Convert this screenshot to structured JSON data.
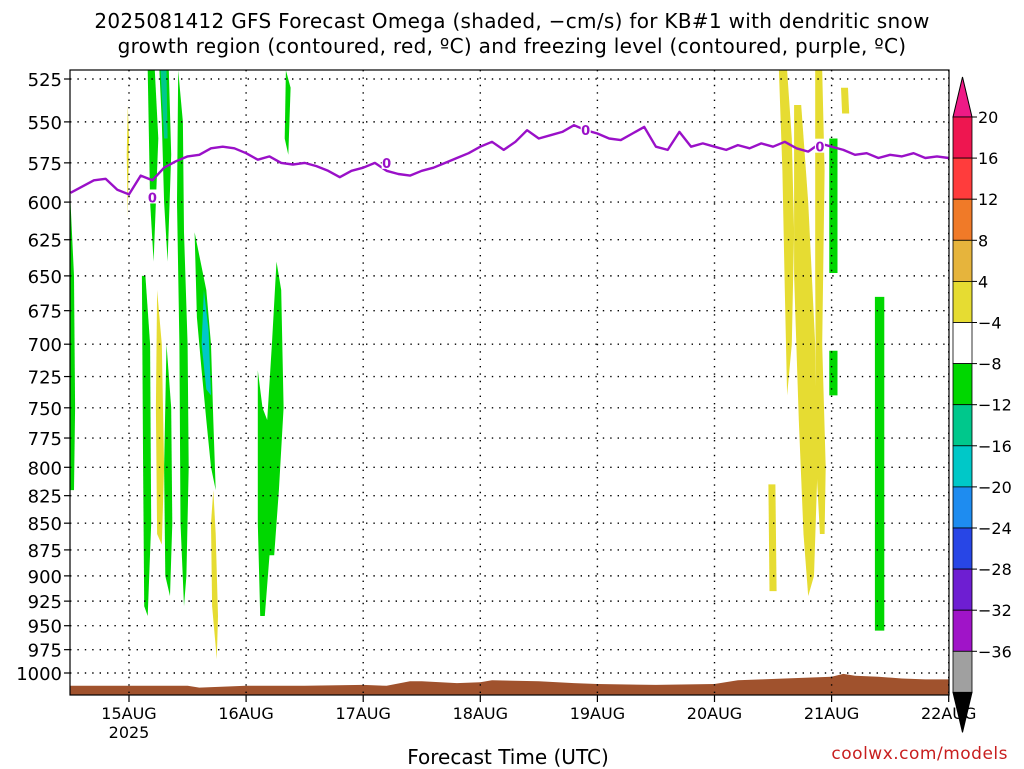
{
  "header": {
    "title_line1": "2025081412 GFS Forecast Omega (shaded, −cm/s) for KB#1 with dendritic snow",
    "title_line2": "growth region (contoured, red, ºC) and freezing level (contoured, purple, ºC)"
  },
  "footer": {
    "credit": "coolwx.com/models"
  },
  "chart_data": {
    "type": "heatmap",
    "xlabel": "Forecast Time (UTC)",
    "ylabel": "",
    "x_ticks": [
      {
        "label": "15AUG",
        "sub": "2025",
        "day": 15
      },
      {
        "label": "16AUG",
        "sub": "",
        "day": 16
      },
      {
        "label": "17AUG",
        "sub": "",
        "day": 17
      },
      {
        "label": "18AUG",
        "sub": "",
        "day": 18
      },
      {
        "label": "19AUG",
        "sub": "",
        "day": 19
      },
      {
        "label": "20AUG",
        "sub": "",
        "day": 20
      },
      {
        "label": "21AUG",
        "sub": "",
        "day": 21
      },
      {
        "label": "22AUG",
        "sub": "",
        "day": 22
      }
    ],
    "xlim": [
      14.5,
      22.0
    ],
    "y_ticks": [
      525,
      550,
      575,
      600,
      625,
      650,
      675,
      700,
      725,
      750,
      775,
      800,
      825,
      850,
      875,
      900,
      925,
      950,
      975,
      1000
    ],
    "ylim": [
      520,
      1020
    ],
    "y_scale": "log-pressure, inverted",
    "grid": true,
    "colorbar": {
      "labels": [
        "20",
        "16",
        "12",
        "8",
        "4",
        "−4",
        "−8",
        "−12",
        "−16",
        "−20",
        "−24",
        "−28",
        "−32",
        "−36"
      ],
      "colors": [
        "#ee1650",
        "#ff3c3c",
        "#f07a28",
        "#e6b43c",
        "#e6dc32",
        "#ffffff",
        "#00d700",
        "#00c88c",
        "#00c8c8",
        "#1e8cf0",
        "#2846e6",
        "#6e1ed2",
        "#a014c8",
        "#a0a0a0",
        "#000000"
      ],
      "top_color": "#ee1a86",
      "bottom_color": "#000000"
    },
    "shaded_regions": [
      {
        "color": "#00d700",
        "points": [
          [
            14.5,
            600
          ],
          [
            14.53,
            650
          ],
          [
            14.54,
            750
          ],
          [
            14.53,
            820
          ],
          [
            14.5,
            820
          ]
        ]
      },
      {
        "color": "#e6dc32",
        "points": [
          [
            14.99,
            540
          ],
          [
            15.0,
            560
          ],
          [
            14.99,
            610
          ],
          [
            14.98,
            570
          ]
        ]
      },
      {
        "color": "#00d700",
        "points": [
          [
            15.14,
            650
          ],
          [
            15.18,
            700
          ],
          [
            15.19,
            850
          ],
          [
            15.16,
            940
          ],
          [
            15.13,
            930
          ],
          [
            15.12,
            800
          ],
          [
            15.11,
            650
          ]
        ]
      },
      {
        "color": "#00d700",
        "points": [
          [
            15.16,
            520
          ],
          [
            15.22,
            520
          ],
          [
            15.25,
            560
          ],
          [
            15.23,
            600
          ],
          [
            15.21,
            640
          ],
          [
            15.18,
            600
          ]
        ]
      },
      {
        "color": "#00d700",
        "points": [
          [
            15.26,
            520
          ],
          [
            15.34,
            520
          ],
          [
            15.36,
            570
          ],
          [
            15.33,
            640
          ],
          [
            15.3,
            600
          ],
          [
            15.28,
            550
          ]
        ]
      },
      {
        "color": "#00c88c",
        "points": [
          [
            15.27,
            520
          ],
          [
            15.32,
            520
          ],
          [
            15.33,
            560
          ],
          [
            15.3,
            560
          ]
        ]
      },
      {
        "color": "#e6dc32",
        "points": [
          [
            15.24,
            660
          ],
          [
            15.28,
            700
          ],
          [
            15.3,
            800
          ],
          [
            15.28,
            870
          ],
          [
            15.24,
            860
          ],
          [
            15.23,
            750
          ]
        ]
      },
      {
        "color": "#00d700",
        "points": [
          [
            15.32,
            700
          ],
          [
            15.36,
            750
          ],
          [
            15.37,
            850
          ],
          [
            15.35,
            920
          ],
          [
            15.31,
            900
          ],
          [
            15.3,
            800
          ]
        ]
      },
      {
        "color": "#00d700",
        "points": [
          [
            15.42,
            520
          ],
          [
            15.46,
            550
          ],
          [
            15.47,
            620
          ],
          [
            15.5,
            700
          ],
          [
            15.51,
            800
          ],
          [
            15.49,
            900
          ],
          [
            15.47,
            930
          ],
          [
            15.44,
            850
          ],
          [
            15.43,
            700
          ],
          [
            15.41,
            600
          ]
        ]
      },
      {
        "color": "#00d700",
        "points": [
          [
            15.56,
            620
          ],
          [
            15.66,
            660
          ],
          [
            15.7,
            700
          ],
          [
            15.72,
            760
          ],
          [
            15.74,
            820
          ],
          [
            15.7,
            800
          ],
          [
            15.66,
            760
          ],
          [
            15.62,
            720
          ],
          [
            15.58,
            680
          ]
        ]
      },
      {
        "color": "#00c8c8",
        "points": [
          [
            15.64,
            660
          ],
          [
            15.68,
            690
          ],
          [
            15.7,
            740
          ],
          [
            15.66,
            735
          ],
          [
            15.62,
            700
          ]
        ]
      },
      {
        "color": "#e6dc32",
        "points": [
          [
            15.72,
            820
          ],
          [
            15.74,
            860
          ],
          [
            15.76,
            940
          ],
          [
            15.75,
            985
          ],
          [
            15.71,
            930
          ],
          [
            15.7,
            850
          ]
        ]
      },
      {
        "color": "#00d700",
        "points": [
          [
            16.1,
            720
          ],
          [
            16.14,
            750
          ],
          [
            16.18,
            760
          ],
          [
            16.22,
            700
          ],
          [
            16.26,
            640
          ],
          [
            16.3,
            660
          ],
          [
            16.32,
            750
          ],
          [
            16.28,
            820
          ],
          [
            16.24,
            880
          ],
          [
            16.2,
            880
          ],
          [
            16.16,
            940
          ],
          [
            16.12,
            940
          ],
          [
            16.1,
            850
          ]
        ]
      },
      {
        "color": "#00d700",
        "points": [
          [
            16.34,
            520
          ],
          [
            16.38,
            530
          ],
          [
            16.36,
            570
          ],
          [
            16.33,
            560
          ]
        ]
      },
      {
        "color": "#e6dc32",
        "points": [
          [
            20.55,
            520
          ],
          [
            20.62,
            520
          ],
          [
            20.66,
            560
          ],
          [
            20.68,
            620
          ],
          [
            20.66,
            700
          ],
          [
            20.62,
            740
          ],
          [
            20.6,
            660
          ],
          [
            20.58,
            580
          ]
        ]
      },
      {
        "color": "#e6dc32",
        "points": [
          [
            20.68,
            540
          ],
          [
            20.74,
            540
          ],
          [
            20.8,
            600
          ],
          [
            20.86,
            700
          ],
          [
            20.88,
            800
          ],
          [
            20.85,
            900
          ],
          [
            20.8,
            920
          ],
          [
            20.76,
            860
          ],
          [
            20.72,
            760
          ],
          [
            20.68,
            650
          ]
        ]
      },
      {
        "color": "#e6dc32",
        "points": [
          [
            20.86,
            520
          ],
          [
            20.92,
            520
          ],
          [
            20.94,
            580
          ],
          [
            20.92,
            700
          ],
          [
            20.95,
            800
          ],
          [
            20.94,
            860
          ],
          [
            20.9,
            860
          ],
          [
            20.87,
            800
          ],
          [
            20.86,
            650
          ]
        ]
      },
      {
        "color": "#e6dc32",
        "points": [
          [
            20.46,
            815
          ],
          [
            20.52,
            815
          ],
          [
            20.53,
            915
          ],
          [
            20.47,
            915
          ]
        ]
      },
      {
        "color": "#e6dc32",
        "points": [
          [
            21.08,
            530
          ],
          [
            21.14,
            530
          ],
          [
            21.15,
            545
          ],
          [
            21.09,
            545
          ]
        ]
      },
      {
        "color": "#00d700",
        "points": [
          [
            20.98,
            560
          ],
          [
            21.05,
            560
          ],
          [
            21.05,
            648
          ],
          [
            20.98,
            648
          ]
        ]
      },
      {
        "color": "#00d700",
        "points": [
          [
            20.98,
            705
          ],
          [
            21.05,
            705
          ],
          [
            21.05,
            740
          ],
          [
            20.98,
            740
          ]
        ]
      },
      {
        "color": "#00d700",
        "points": [
          [
            21.37,
            665
          ],
          [
            21.45,
            665
          ],
          [
            21.45,
            955
          ],
          [
            21.37,
            955
          ]
        ]
      }
    ],
    "freezing_level": {
      "color": "#9a10c8",
      "label": "0",
      "x": [
        14.5,
        14.6,
        14.7,
        14.8,
        14.9,
        15.0,
        15.1,
        15.2,
        15.3,
        15.4,
        15.5,
        15.6,
        15.7,
        15.8,
        15.9,
        16.0,
        16.1,
        16.2,
        16.3,
        16.4,
        16.5,
        16.6,
        16.7,
        16.8,
        16.9,
        17.0,
        17.1,
        17.2,
        17.3,
        17.4,
        17.5,
        17.6,
        17.7,
        17.8,
        17.9,
        18.0,
        18.1,
        18.2,
        18.3,
        18.4,
        18.5,
        18.6,
        18.7,
        18.8,
        18.9,
        19.0,
        19.1,
        19.2,
        19.3,
        19.4,
        19.5,
        19.6,
        19.7,
        19.8,
        19.9,
        20.0,
        20.1,
        20.2,
        20.3,
        20.4,
        20.5,
        20.6,
        20.7,
        20.8,
        20.9,
        21.0,
        21.1,
        21.2,
        21.3,
        21.4,
        21.5,
        21.6,
        21.7,
        21.8,
        21.9,
        22.0
      ],
      "y": [
        594,
        590,
        586,
        585,
        592,
        595,
        583,
        586,
        578,
        574,
        571,
        570,
        566,
        565,
        566,
        569,
        573,
        571,
        575,
        576,
        575,
        577,
        580,
        584,
        580,
        578,
        575,
        580,
        582,
        583,
        580,
        578,
        575,
        572,
        569,
        565,
        562,
        567,
        562,
        555,
        560,
        558,
        556,
        552,
        555,
        557,
        560,
        561,
        557,
        553,
        565,
        567,
        556,
        565,
        563,
        565,
        567,
        564,
        566,
        563,
        565,
        562,
        566,
        568,
        563,
        565,
        567,
        570,
        569,
        572,
        570,
        571,
        569,
        572,
        571,
        572
      ]
    },
    "zero_labels": [
      {
        "x": 15.2,
        "y": 597
      },
      {
        "x": 17.2,
        "y": 575
      },
      {
        "x": 18.9,
        "y": 555
      },
      {
        "x": 20.9,
        "y": 565
      }
    ],
    "terrain_color": "#a0522d",
    "terrain": {
      "x": [
        14.5,
        15.0,
        15.5,
        15.6,
        16.0,
        16.5,
        17.0,
        17.2,
        17.4,
        17.5,
        17.8,
        18.0,
        18.1,
        18.5,
        18.8,
        19.0,
        19.5,
        20.0,
        20.2,
        20.4,
        20.6,
        20.8,
        21.0,
        21.1,
        21.2,
        21.4,
        21.6,
        21.8,
        22.0
      ],
      "y": [
        1014,
        1014,
        1014,
        1016,
        1014,
        1014,
        1013,
        1014,
        1009,
        1009,
        1011,
        1010,
        1008,
        1009,
        1011,
        1012,
        1013,
        1012,
        1008,
        1007,
        1006,
        1005,
        1004,
        1001,
        1003,
        1004,
        1006,
        1007,
        1007
      ]
    }
  }
}
